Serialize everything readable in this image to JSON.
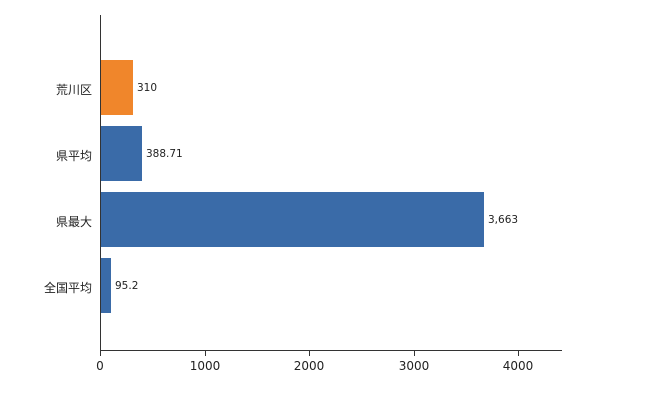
{
  "chart_data": {
    "type": "bar",
    "orientation": "horizontal",
    "title": "",
    "xlabel": "",
    "ylabel": "",
    "grid": false,
    "legend_position": "none",
    "categories": [
      "荒川区",
      "県平均",
      "県最大",
      "全国平均"
    ],
    "values": [
      310,
      388.71,
      3663,
      95.2
    ],
    "value_labels": [
      "310",
      "388.71",
      "3,663",
      "95.2"
    ],
    "bar_colors": [
      "#f0862b",
      "#3a6ba8",
      "#3a6ba8",
      "#3a6ba8"
    ],
    "x_ticks": [
      0,
      1000,
      2000,
      3000,
      4000
    ],
    "x_tick_labels": [
      "0",
      "1000",
      "2000",
      "3000",
      "4000"
    ],
    "xlim": [
      0,
      4400
    ],
    "axis_color": "#333333"
  }
}
